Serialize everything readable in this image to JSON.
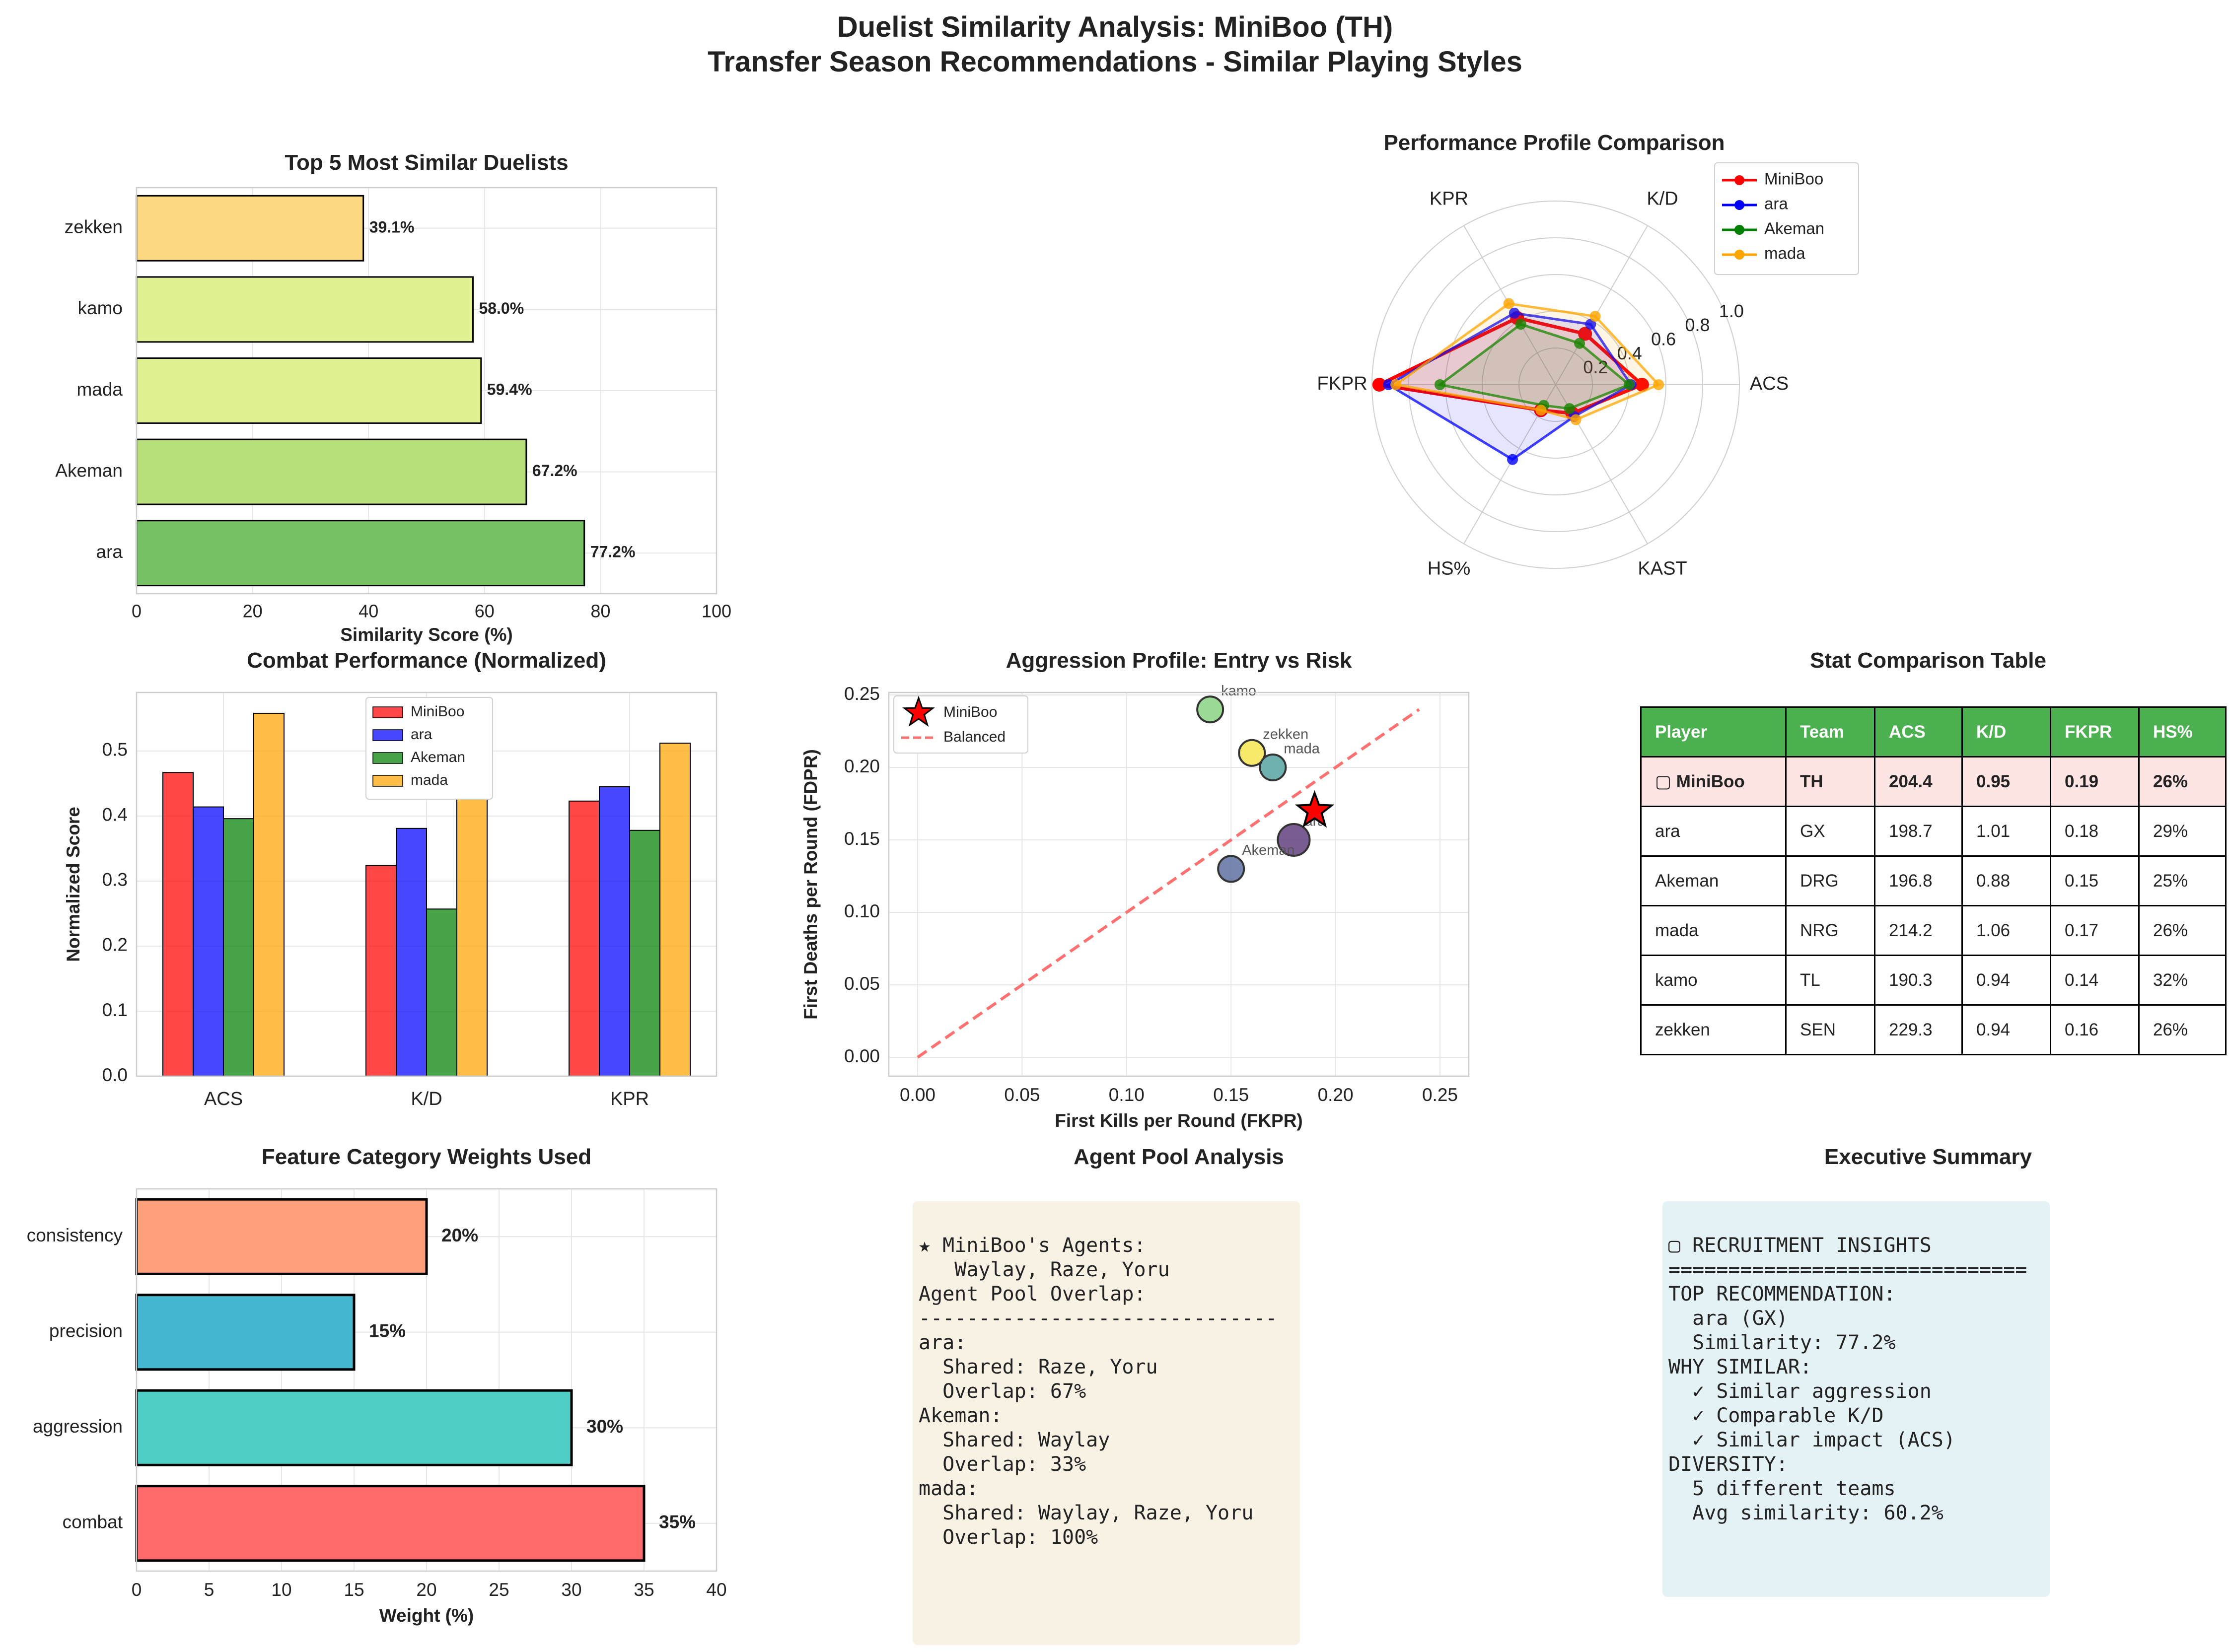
{
  "title": "Duelist Similarity Analysis: MiniBoo (TH)",
  "subtitle": "Transfer Season Recommendations - Similar Playing Styles",
  "colors": {
    "miniboo": "#ff0000",
    "ara": "#0000ff",
    "akeman": "#008000",
    "mada": "#ffa500"
  },
  "chart_data": [
    {
      "id": "similarity",
      "type": "bar",
      "orientation": "horizontal",
      "title": "Top 5 Most Similar Duelists",
      "xlabel": "Similarity Score (%)",
      "xlim": [
        0,
        100
      ],
      "xticks": [
        "0",
        "20",
        "40",
        "60",
        "80",
        "100"
      ],
      "categories": [
        "ara",
        "Akeman",
        "mada",
        "kamo",
        "zekken"
      ],
      "values": [
        77.2,
        67.2,
        59.4,
        58.0,
        39.1
      ],
      "value_labels": [
        "77.2%",
        "67.2%",
        "59.4%",
        "58.0%",
        "39.1%"
      ],
      "colors": [
        "#76c163",
        "#b8e07a",
        "#dff191",
        "#dff191",
        "#fdd982"
      ],
      "grid": true
    },
    {
      "id": "radar",
      "type": "radar",
      "title": "Performance Profile Comparison",
      "axes": [
        "ACS",
        "K/D",
        "KPR",
        "FKPR",
        "HS%",
        "KAST"
      ],
      "rticks": [
        "0.2",
        "0.4",
        "0.6",
        "0.8",
        "1.0"
      ],
      "rlim": [
        0,
        1.0
      ],
      "legend_position": "top-right",
      "series": [
        {
          "name": "MiniBoo",
          "color": "#ff0000",
          "values": [
            0.47,
            0.32,
            0.42,
            0.96,
            0.16,
            0.18
          ]
        },
        {
          "name": "ara",
          "color": "#0000ff",
          "values": [
            0.41,
            0.38,
            0.45,
            0.91,
            0.47,
            0.2
          ]
        },
        {
          "name": "Akeman",
          "color": "#008000",
          "values": [
            0.4,
            0.26,
            0.38,
            0.63,
            0.13,
            0.15
          ]
        },
        {
          "name": "mada",
          "color": "#ffa500",
          "values": [
            0.56,
            0.43,
            0.51,
            0.87,
            0.16,
            0.22
          ]
        }
      ]
    },
    {
      "id": "combat",
      "type": "bar",
      "title": "Combat Performance (Normalized)",
      "ylabel": "Normalized Score",
      "ylim": [
        0,
        0.59
      ],
      "yticks": [
        "0.0",
        "0.1",
        "0.2",
        "0.3",
        "0.4",
        "0.5"
      ],
      "categories": [
        "ACS",
        "K/D",
        "KPR"
      ],
      "legend_position": "top-center",
      "series": [
        {
          "name": "MiniBoo",
          "color": "#ff0000",
          "values": [
            0.467,
            0.324,
            0.423
          ]
        },
        {
          "name": "ara",
          "color": "#0000ff",
          "values": [
            0.414,
            0.381,
            0.445
          ]
        },
        {
          "name": "Akeman",
          "color": "#008000",
          "values": [
            0.396,
            0.257,
            0.378
          ]
        },
        {
          "name": "mada",
          "color": "#ffa500",
          "values": [
            0.558,
            0.433,
            0.512
          ]
        }
      ]
    },
    {
      "id": "aggression",
      "type": "scatter",
      "title": "Aggression Profile: Entry vs Risk",
      "xlabel": "First Kills per Round (FKPR)",
      "ylabel": "First Deaths per Round (FDPR)",
      "xlim": [
        0,
        0.25
      ],
      "ylim": [
        0,
        0.25
      ],
      "xticks": [
        "0.00",
        "0.05",
        "0.10",
        "0.15",
        "0.20",
        "0.25"
      ],
      "yticks": [
        "0.00",
        "0.05",
        "0.10",
        "0.15",
        "0.20",
        "0.25"
      ],
      "legend": [
        "MiniBoo",
        "Balanced"
      ],
      "legend_position": "top-left",
      "points": [
        {
          "label": "kamo",
          "x": 0.14,
          "y": 0.24,
          "color": "#8fd68a"
        },
        {
          "label": "zekken",
          "x": 0.16,
          "y": 0.21,
          "color": "#f6e75a"
        },
        {
          "label": "mada",
          "x": 0.17,
          "y": 0.2,
          "color": "#5fa8a6"
        },
        {
          "label": "ara",
          "x": 0.18,
          "y": 0.15,
          "color": "#6a4a86"
        },
        {
          "label": "Akeman",
          "x": 0.15,
          "y": 0.13,
          "color": "#6878a8"
        }
      ],
      "highlight": {
        "label": "MiniBoo",
        "x": 0.19,
        "y": 0.17,
        "color": "#ff0000"
      },
      "reference_line": {
        "label": "Balanced",
        "from": [
          0,
          0
        ],
        "to": [
          0.24,
          0.24
        ],
        "color": "#ff7070"
      }
    },
    {
      "id": "weights",
      "type": "bar",
      "orientation": "horizontal",
      "title": "Feature Category Weights Used",
      "xlabel": "Weight (%)",
      "xlim": [
        0,
        40
      ],
      "xticks": [
        "0",
        "5",
        "10",
        "15",
        "20",
        "25",
        "30",
        "35",
        "40"
      ],
      "categories": [
        "combat",
        "aggression",
        "precision",
        "consistency"
      ],
      "values": [
        35,
        30,
        15,
        20
      ],
      "value_labels": [
        "35%",
        "30%",
        "15%",
        "20%"
      ],
      "colors": [
        "#ff6b6b",
        "#4ecdc4",
        "#45b7d1",
        "#ffa07a"
      ]
    },
    {
      "id": "stat_table",
      "type": "table",
      "title": "Stat Comparison Table",
      "columns": [
        "Player",
        "Team",
        "ACS",
        "K/D",
        "FKPR",
        "HS%"
      ],
      "rows": [
        [
          "▢ MiniBoo",
          "TH",
          "204.4",
          "0.95",
          "0.19",
          "26%"
        ],
        [
          "ara",
          "GX",
          "198.7",
          "1.01",
          "0.18",
          "29%"
        ],
        [
          "Akeman",
          "DRG",
          "196.8",
          "0.88",
          "0.15",
          "25%"
        ],
        [
          "mada",
          "NRG",
          "214.2",
          "1.06",
          "0.17",
          "26%"
        ],
        [
          "kamo",
          "TL",
          "190.3",
          "0.94",
          "0.14",
          "32%"
        ],
        [
          "zekken",
          "SEN",
          "229.3",
          "0.94",
          "0.16",
          "26%"
        ]
      ]
    }
  ],
  "agent_pool": {
    "title": "Agent Pool Analysis",
    "lines": [
      "★ MiniBoo's Agents:",
      "   Waylay, Raze, Yoru",
      "",
      "Agent Pool Overlap:",
      "------------------------------",
      "",
      "ara:",
      "  Shared: Raze, Yoru",
      "  Overlap: 67%",
      "",
      "Akeman:",
      "  Shared: Waylay",
      "  Overlap: 33%",
      "",
      "mada:",
      "  Shared: Waylay, Raze, Yoru",
      "  Overlap: 100%"
    ]
  },
  "executive_summary": {
    "title": "Executive Summary",
    "lines": [
      "▢ RECRUITMENT INSIGHTS",
      "==============================",
      "",
      "TOP RECOMMENDATION:",
      "  ara (GX)",
      "  Similarity: 77.2%",
      "",
      "WHY SIMILAR:",
      "  ✓ Similar aggression",
      "  ✓ Comparable K/D",
      "  ✓ Similar impact (ACS)",
      "",
      "DIVERSITY:",
      "  5 different teams",
      "  Avg similarity: 60.2%"
    ]
  }
}
